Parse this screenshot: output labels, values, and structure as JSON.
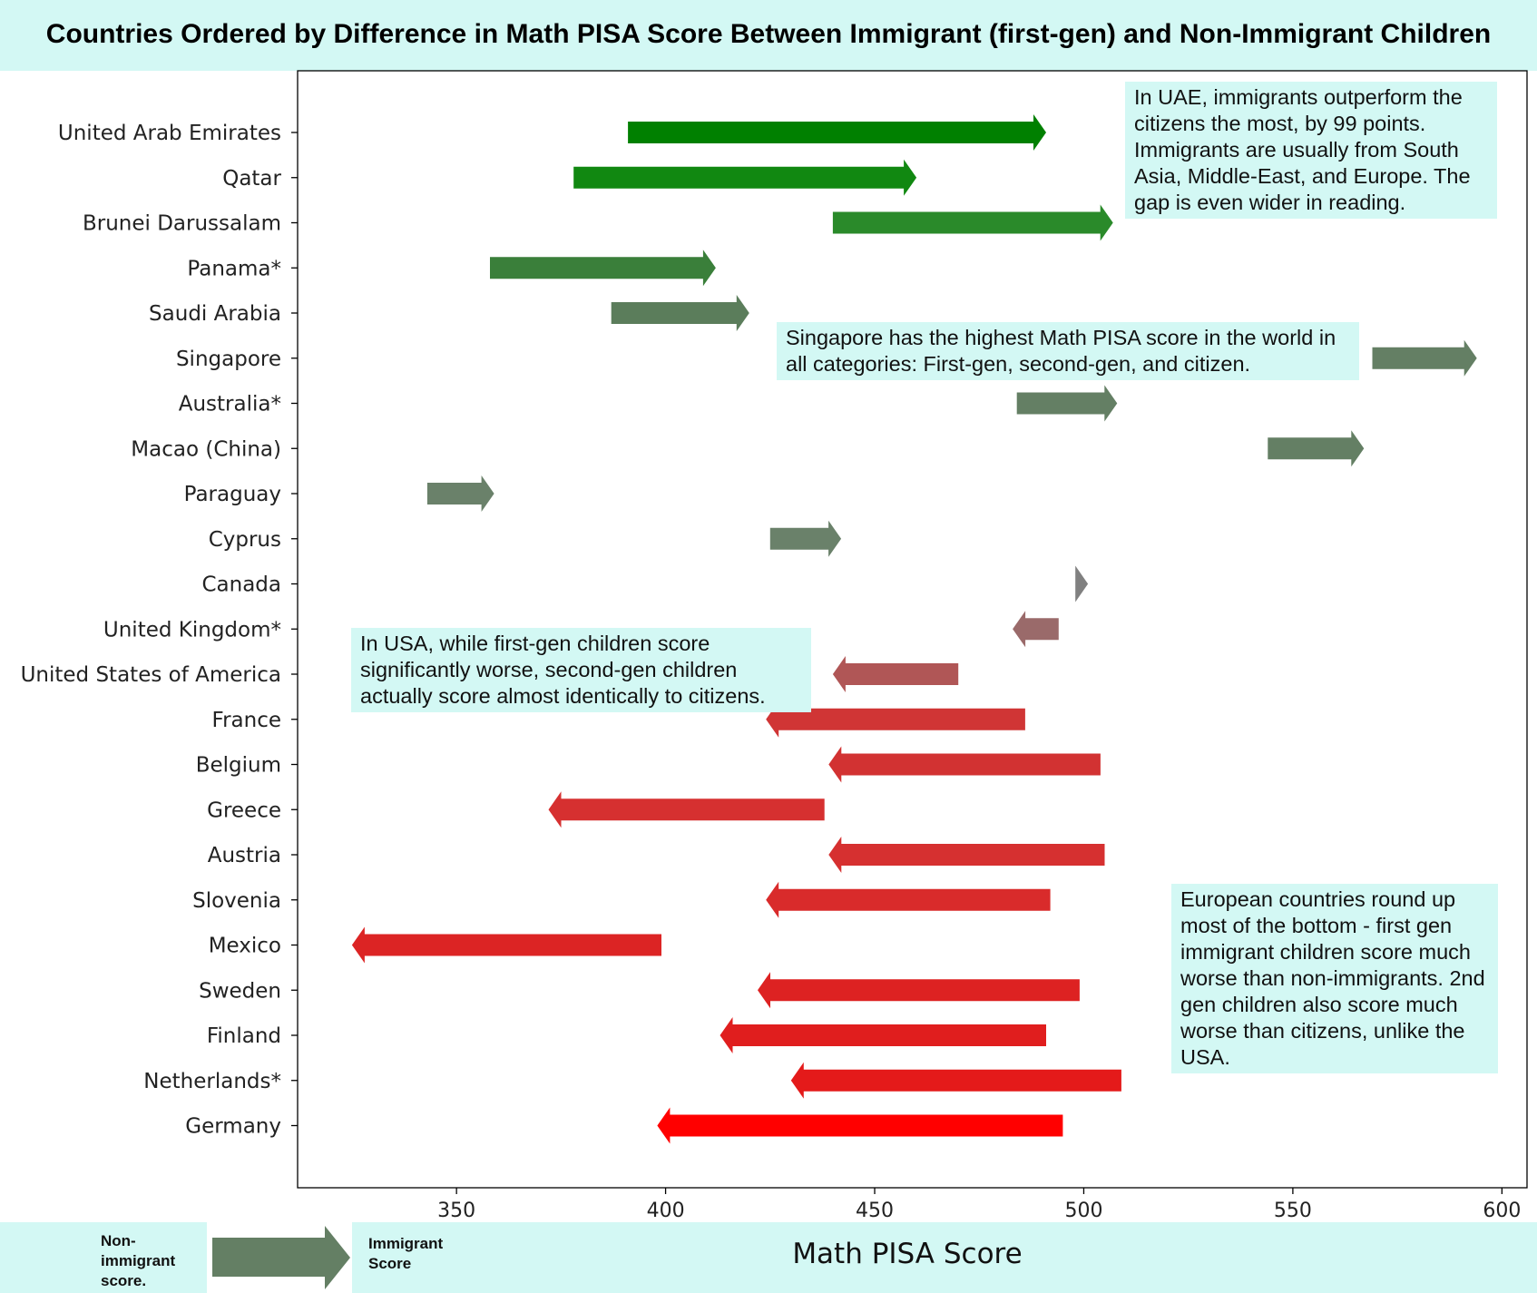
{
  "chart_data": {
    "type": "arrow",
    "title": "Countries Ordered by Difference in Math PISA Score Between Immigrant (first-gen) and Non-Immigrant Children",
    "xlabel": "Math PISA Score",
    "ylabel": "",
    "xlim": [
      312,
      606
    ],
    "xticks": [
      350,
      400,
      450,
      500,
      550,
      600
    ],
    "grid": false,
    "series": [
      {
        "country": "United Arab Emirates",
        "non_immigrant": 391,
        "immigrant": 491,
        "color": "#008000"
      },
      {
        "country": "Qatar",
        "non_immigrant": 378,
        "immigrant": 460,
        "color": "#118811"
      },
      {
        "country": "Brunei Darussalam",
        "non_immigrant": 440,
        "immigrant": 507,
        "color": "#2a8a2a"
      },
      {
        "country": "Panama*",
        "non_immigrant": 358,
        "immigrant": 412,
        "color": "#3a7f3a"
      },
      {
        "country": "Saudi Arabia",
        "non_immigrant": 387,
        "immigrant": 420,
        "color": "#5b7d5b"
      },
      {
        "country": "Singapore",
        "non_immigrant": 569,
        "immigrant": 594,
        "color": "#647f64"
      },
      {
        "country": "Australia*",
        "non_immigrant": 484,
        "immigrant": 508,
        "color": "#647f64"
      },
      {
        "country": "Macao (China)",
        "non_immigrant": 544,
        "immigrant": 567,
        "color": "#647f64"
      },
      {
        "country": "Paraguay",
        "non_immigrant": 343,
        "immigrant": 359,
        "color": "#6a816a"
      },
      {
        "country": "Cyprus",
        "non_immigrant": 425,
        "immigrant": 442,
        "color": "#6a816a"
      },
      {
        "country": "Canada",
        "non_immigrant": 498,
        "immigrant": 501,
        "color": "#808080"
      },
      {
        "country": "United Kingdom*",
        "non_immigrant": 494,
        "immigrant": 483,
        "color": "#9a6a6a"
      },
      {
        "country": "United States of America",
        "non_immigrant": 470,
        "immigrant": 440,
        "color": "#b05656"
      },
      {
        "country": "France",
        "non_immigrant": 486,
        "immigrant": 424,
        "color": "#d03535"
      },
      {
        "country": "Belgium",
        "non_immigrant": 504,
        "immigrant": 439,
        "color": "#d23232"
      },
      {
        "country": "Greece",
        "non_immigrant": 438,
        "immigrant": 372,
        "color": "#d63030"
      },
      {
        "country": "Austria",
        "non_immigrant": 505,
        "immigrant": 439,
        "color": "#d63030"
      },
      {
        "country": "Slovenia",
        "non_immigrant": 492,
        "immigrant": 424,
        "color": "#d92b2b"
      },
      {
        "country": "Mexico",
        "non_immigrant": 399,
        "immigrant": 325,
        "color": "#dc2424"
      },
      {
        "country": "Sweden",
        "non_immigrant": 499,
        "immigrant": 422,
        "color": "#dd2222"
      },
      {
        "country": "Finland",
        "non_immigrant": 491,
        "immigrant": 413,
        "color": "#e01e1e"
      },
      {
        "country": "Netherlands*",
        "non_immigrant": 509,
        "immigrant": 430,
        "color": "#e41a1a"
      },
      {
        "country": "Germany",
        "non_immigrant": 495,
        "immigrant": 398,
        "color": "#ff0000"
      }
    ]
  },
  "annotations": {
    "uae": "In UAE, immigrants outperform the citizens the most, by 99 points. Immigrants are usually from South Asia, Middle-East, and Europe. The gap is even wider in reading.",
    "singapore": "Singapore has the highest Math PISA score in the world in all categories: First-gen, second-gen, and citizen.",
    "usa": "In USA, while first-gen children score significantly worse, second-gen children actually score almost identically to citizens.",
    "europe": "European countries round up most of the bottom - first gen immigrant children score much worse than non-immigrants. 2nd gen children also score much worse than citizens, unlike the USA."
  },
  "legend": {
    "left_label": "Non-immigrant score.",
    "right_label": "Immigrant Score",
    "arrow_color": "#647f64"
  }
}
